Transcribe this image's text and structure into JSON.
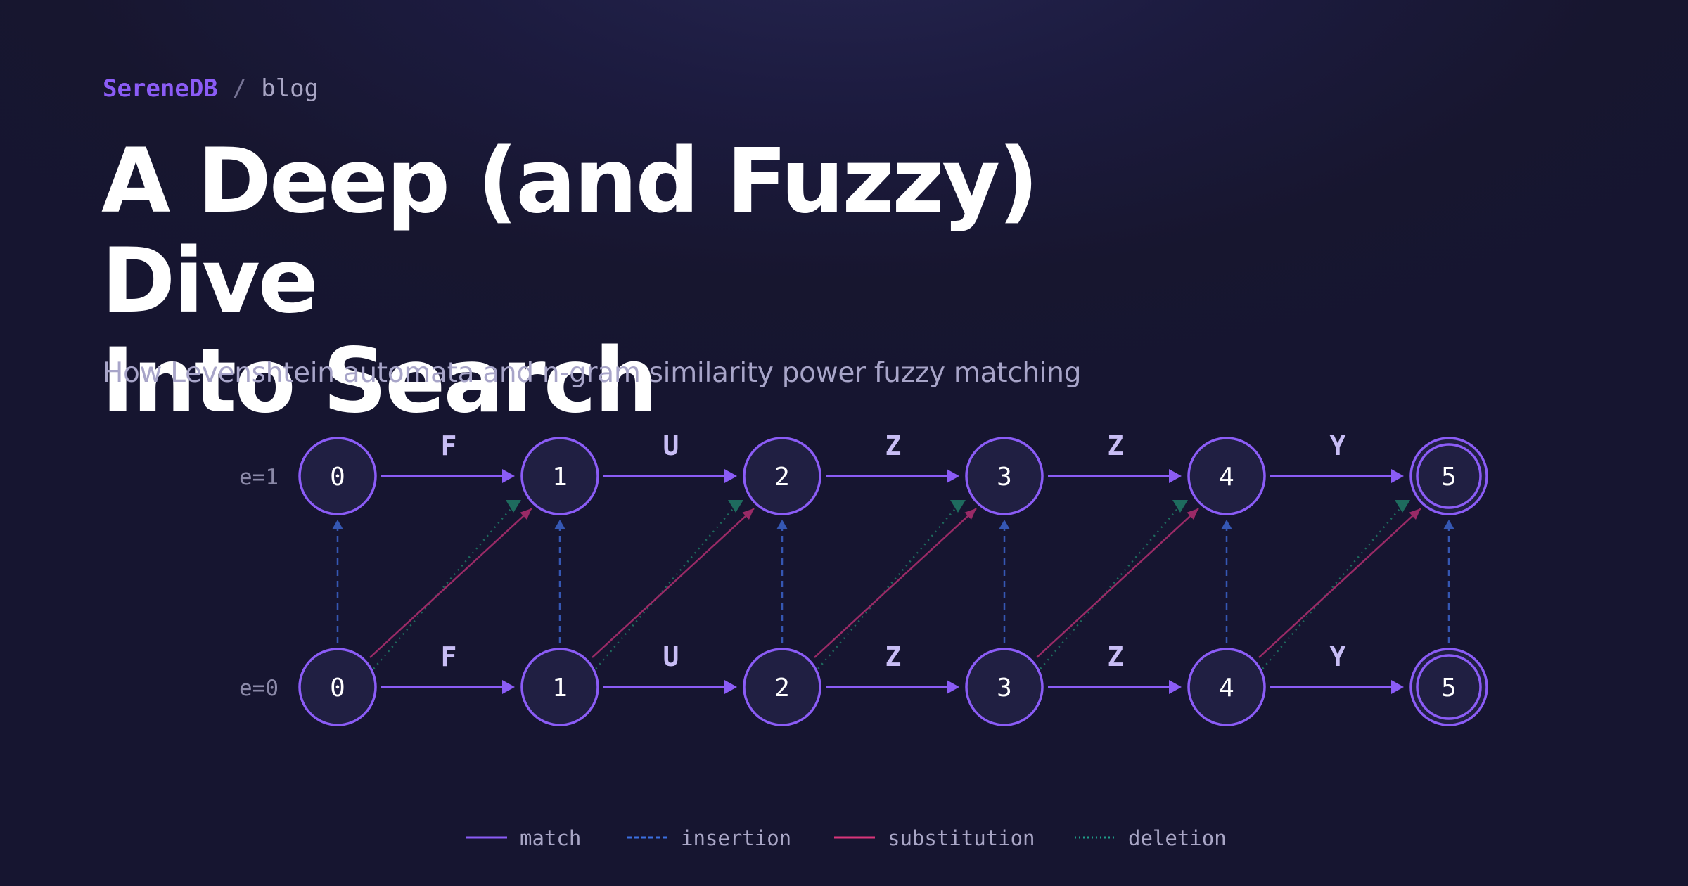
{
  "header": {
    "brand": "SereneDB",
    "separator": "/",
    "section": "blog"
  },
  "title_line1": "A Deep (and Fuzzy) Dive",
  "title_line2": "Into Search",
  "subtitle": "How Levenshtein automata and n-gram similarity power fuzzy matching",
  "automaton": {
    "rows": [
      "e=1",
      "e=0"
    ],
    "states": [
      "0",
      "1",
      "2",
      "3",
      "4",
      "5"
    ],
    "letters": [
      "F",
      "U",
      "Z",
      "Z",
      "Y"
    ],
    "accepting_state": "5"
  },
  "legend": [
    {
      "key": "match",
      "label": "match",
      "color": "#8b5cf6",
      "style": "solid"
    },
    {
      "key": "insertion",
      "label": "insertion",
      "color": "#3b6fe0",
      "style": "dashed"
    },
    {
      "key": "substitution",
      "label": "substitution",
      "color": "#d9357a",
      "style": "solid"
    },
    {
      "key": "deletion",
      "label": "deletion",
      "color": "#1f9c88",
      "style": "dotted"
    }
  ],
  "colors": {
    "background": "#18172f",
    "node_fill": "#201f42",
    "node_stroke": "#8b5cf6",
    "node_text": "#ffffff",
    "letter": "#c8bdf5",
    "insertion": "#3557b3",
    "substitution": "#9a2a66",
    "deletion": "#1e6b5e",
    "row_label": "#8b89a8",
    "legend_text": "#a9a6c6"
  }
}
